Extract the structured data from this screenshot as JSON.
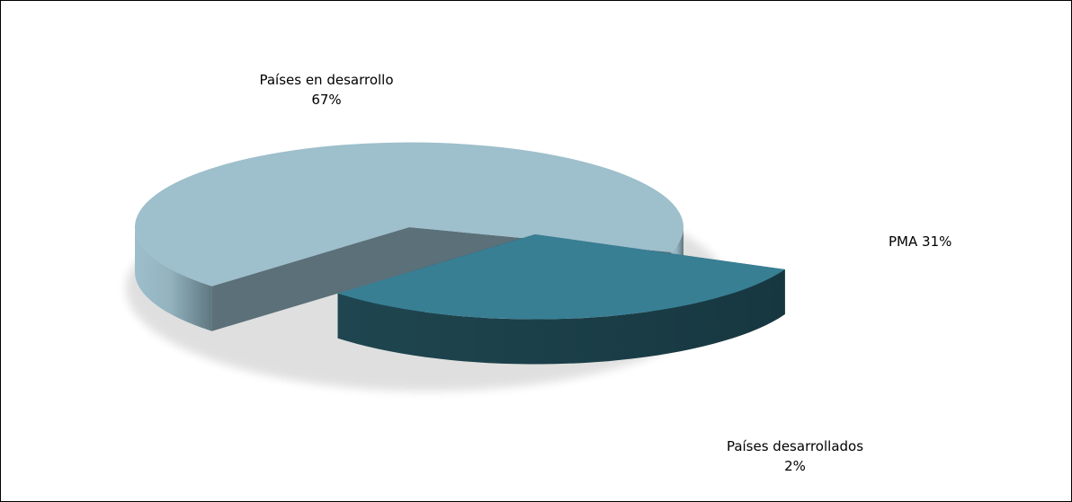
{
  "chart_data": {
    "type": "pie",
    "title": "",
    "slices": [
      {
        "label": "Países en desarrollo",
        "value": 67,
        "value_text": "67%",
        "color": "#9ebfcc"
      },
      {
        "label": "PMA",
        "value": 31,
        "value_text": "31%",
        "color": "#387f94"
      },
      {
        "label": "Países desarrollados",
        "value": 2,
        "value_text": "2%",
        "color": "#3a9bb4"
      }
    ],
    "legend": "none",
    "style": "3d-exploded"
  }
}
